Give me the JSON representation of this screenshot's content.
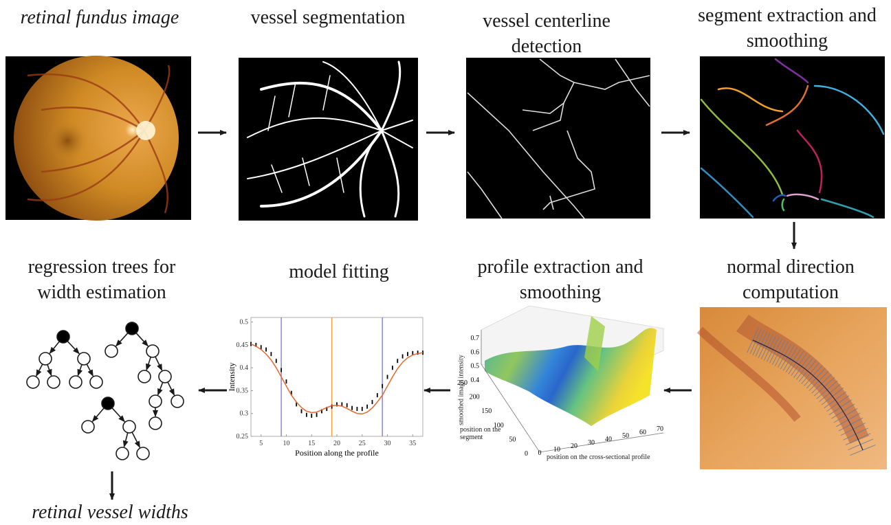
{
  "stages": [
    {
      "label": "retinal fundus image"
    },
    {
      "label": "vessel segmentation"
    },
    {
      "label": "vessel centerline detection"
    },
    {
      "label": "segment extraction and smoothing"
    },
    {
      "label": "normal direction computation"
    },
    {
      "label": "profile extraction and smoothing"
    },
    {
      "label": "model fitting"
    },
    {
      "label": "regression trees for width estimation"
    }
  ],
  "output": "retinal vessel widths",
  "fit_plot": {
    "ylabel": "Intensity",
    "xlabel": "Position along the profile",
    "xlim": [
      3,
      37
    ],
    "ylim": [
      0.25,
      0.51
    ],
    "xticks": [
      5,
      10,
      15,
      20,
      25,
      30,
      35
    ],
    "yticks": [
      0.25,
      0.3,
      0.35,
      0.4,
      0.45,
      0.5
    ],
    "x": [
      3,
      4,
      5,
      6,
      7,
      8,
      9,
      10,
      11,
      12,
      13,
      14,
      15,
      16,
      17,
      18,
      19,
      20,
      21,
      22,
      23,
      24,
      25,
      26,
      27,
      28,
      29,
      30,
      31,
      32,
      33,
      34,
      35,
      36,
      37
    ],
    "observed": [
      0.452,
      0.45,
      0.445,
      0.44,
      0.43,
      0.415,
      0.395,
      0.37,
      0.345,
      0.32,
      0.305,
      0.297,
      0.295,
      0.297,
      0.305,
      0.31,
      0.315,
      0.32,
      0.32,
      0.318,
      0.312,
      0.31,
      0.31,
      0.315,
      0.325,
      0.34,
      0.36,
      0.38,
      0.4,
      0.415,
      0.425,
      0.43,
      0.432,
      0.433,
      0.433
    ],
    "fit": [
      0.452,
      0.447,
      0.44,
      0.43,
      0.417,
      0.4,
      0.38,
      0.36,
      0.34,
      0.325,
      0.313,
      0.305,
      0.302,
      0.303,
      0.308,
      0.313,
      0.317,
      0.318,
      0.316,
      0.311,
      0.305,
      0.3,
      0.299,
      0.303,
      0.312,
      0.325,
      0.34,
      0.36,
      0.38,
      0.398,
      0.412,
      0.422,
      0.428,
      0.431,
      0.433
    ],
    "observed_color": "#000000",
    "fit_color": "#e8662a",
    "vlines": [
      {
        "value": 9,
        "color": "#8a86d8"
      },
      {
        "value": 19,
        "color": "#f2a23c"
      },
      {
        "value": 29,
        "color": "#8a86d8"
      }
    ]
  },
  "surface_plot": {
    "zlabel": "smoothed image intensity",
    "ylabel": "position on the segment",
    "xlabel": "position on the cross-sectional profile",
    "zticks": [
      0.4,
      0.5,
      0.6,
      0.7
    ],
    "yticks": [
      0,
      50,
      100,
      150,
      200,
      250
    ],
    "xticks": [
      0,
      10,
      20,
      30,
      40,
      50,
      60,
      70
    ]
  }
}
